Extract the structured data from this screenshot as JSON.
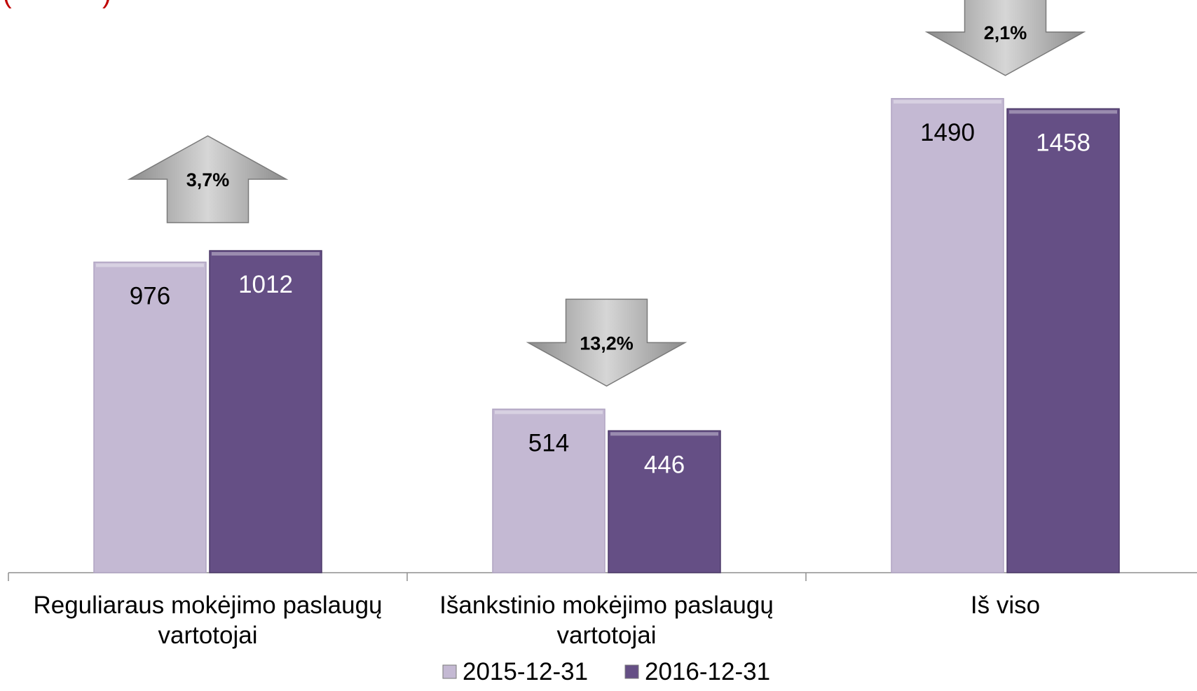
{
  "header": {
    "title_fragment": "( )"
  },
  "chart_data": {
    "type": "bar",
    "categories": [
      [
        "Reguliaraus mokėjimo paslaugų",
        "vartotojai"
      ],
      [
        "Išankstinio mokėjimo paslaugų",
        "vartotojai"
      ],
      [
        "Iš viso"
      ]
    ],
    "series": [
      {
        "name": "2015-12-31",
        "values": [
          976,
          514,
          1490
        ],
        "color": "#c4b9d3",
        "label_color": "#000000"
      },
      {
        "name": "2016-12-31",
        "values": [
          1012,
          446,
          1458
        ],
        "color": "#654f85",
        "label_color": "#ffffff"
      }
    ],
    "ylim": [
      0,
      1600
    ],
    "grid": false,
    "legend_position": "bottom",
    "annotations": [
      {
        "category": 0,
        "direction": "up",
        "text": "3,7%"
      },
      {
        "category": 1,
        "direction": "down",
        "text": "13,2%"
      },
      {
        "category": 2,
        "direction": "down",
        "text": "2,1%"
      }
    ],
    "xlabel": "",
    "ylabel": ""
  }
}
